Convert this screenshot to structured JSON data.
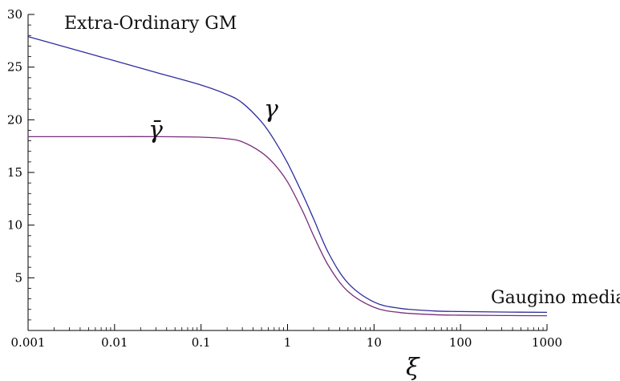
{
  "chart_data": {
    "type": "line",
    "xscale": "log",
    "xlim": [
      0.001,
      1000
    ],
    "ylim": [
      0,
      30
    ],
    "xticks": [
      0.001,
      0.01,
      0.1,
      1,
      10,
      100,
      1000
    ],
    "xtick_labels": [
      "0.001",
      "0.01",
      "0.1",
      "1",
      "10",
      "100",
      "1000"
    ],
    "yticks": [
      5,
      10,
      15,
      20,
      25,
      30
    ],
    "ytick_labels": [
      "5",
      "10",
      "15",
      "20",
      "25",
      "30"
    ],
    "xlabel": "ξ",
    "ylabel": "",
    "grid": false,
    "annotations": {
      "top_left": "Extra-Ordinary GM",
      "right": "Gaugino mediation"
    },
    "series": [
      {
        "name": "γ",
        "color": "#2e2e9e",
        "x": [
          0.001,
          0.003,
          0.01,
          0.03,
          0.1,
          0.2,
          0.3,
          0.5,
          0.7,
          1,
          1.5,
          2,
          3,
          5,
          10,
          20,
          50,
          100,
          300,
          1000
        ],
        "y": [
          27.9,
          26.8,
          25.6,
          24.5,
          23.3,
          22.4,
          21.6,
          19.8,
          18.1,
          15.9,
          12.9,
          10.6,
          7.3,
          4.5,
          2.7,
          2.1,
          1.85,
          1.8,
          1.75,
          1.72
        ]
      },
      {
        "name": "γ̄",
        "color": "#7a2e7a",
        "x": [
          0.001,
          0.003,
          0.01,
          0.03,
          0.1,
          0.2,
          0.3,
          0.5,
          0.7,
          1,
          1.5,
          2,
          3,
          5,
          10,
          20,
          50,
          100,
          300,
          1000
        ],
        "y": [
          18.4,
          18.4,
          18.4,
          18.4,
          18.35,
          18.2,
          17.9,
          16.9,
          15.8,
          14.1,
          11.3,
          9.0,
          6.1,
          3.7,
          2.2,
          1.7,
          1.5,
          1.45,
          1.42,
          1.4
        ]
      }
    ]
  }
}
